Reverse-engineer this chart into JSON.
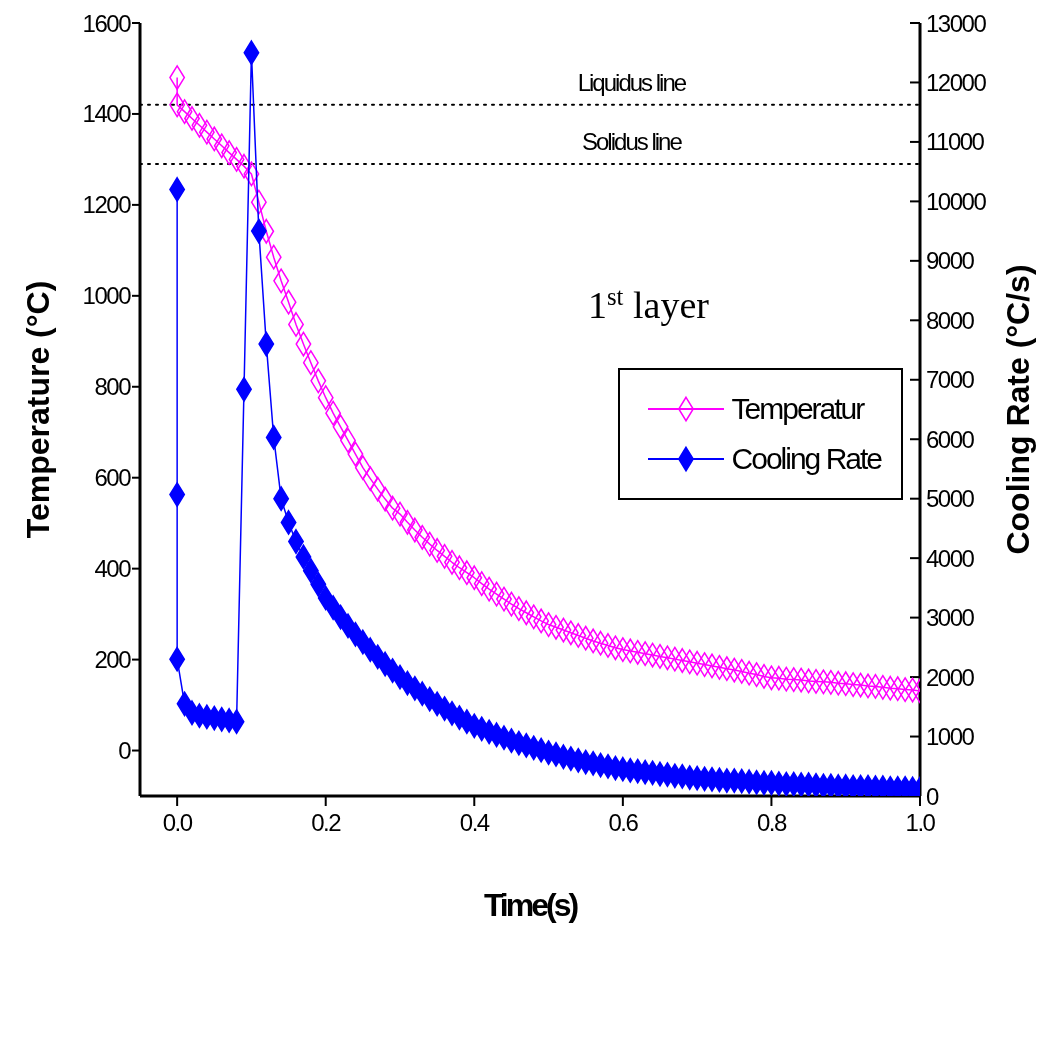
{
  "chart_data": {
    "type": "line",
    "xlabel": "Time(s)",
    "ylabel": "Temperature (°C)",
    "y2label": "Cooling Rate (°C/s)",
    "xlim": [
      -0.05,
      1.0
    ],
    "xticks": [
      {
        "value": 0,
        "label": "0.0"
      },
      0.2,
      0.4,
      0.6,
      0.8,
      {
        "value": 1,
        "label": "1.0"
      }
    ],
    "ylim": [
      -100,
      1600
    ],
    "yticks": [
      0,
      200,
      400,
      600,
      800,
      1000,
      1200,
      1400,
      1600
    ],
    "y2lim": [
      0,
      13000
    ],
    "y2ticks": [
      0,
      1000,
      2000,
      3000,
      4000,
      5000,
      6000,
      7000,
      8000,
      9000,
      10000,
      11000,
      12000,
      13000
    ],
    "marker": "diamond",
    "line_style": "solid",
    "legend": "right",
    "annotations": [
      "1$^{st}$ layer"
    ],
    "ref_lines": [
      {
        "axis": "y",
        "value": 1420,
        "label": "Liquidus line",
        "color": "#000000",
        "line_style": "dotted"
      },
      {
        "axis": "y",
        "value": 1290,
        "label": "Solidus line",
        "color": "#000000",
        "line_style": "dotted"
      }
    ],
    "series": [
      {
        "name": "Temperatur",
        "color": "#ff00ff",
        "x": [
          0,
          0,
          0.01,
          0.02,
          0.03,
          0.04,
          0.05,
          0.06,
          0.07,
          0.08,
          0.09,
          0.1,
          0.11,
          0.12,
          0.13,
          0.14,
          0.15,
          0.16,
          0.17,
          0.18,
          0.19,
          0.2,
          0.21,
          0.22,
          0.23,
          0.24,
          0.25,
          0.26,
          0.27,
          0.28,
          0.29,
          0.3,
          0.31,
          0.32,
          0.33,
          0.34,
          0.35,
          0.36,
          0.37,
          0.38,
          0.39,
          0.4,
          0.41,
          0.42,
          0.43,
          0.44,
          0.45,
          0.46,
          0.47,
          0.48,
          0.49,
          0.5,
          0.51,
          0.52,
          0.53,
          0.54,
          0.55,
          0.56,
          0.57,
          0.58,
          0.59,
          0.6,
          0.61,
          0.62,
          0.63,
          0.64,
          0.65,
          0.66,
          0.67,
          0.68,
          0.69,
          0.7,
          0.71,
          0.72,
          0.73,
          0.74,
          0.75,
          0.76,
          0.77,
          0.78,
          0.79,
          0.8,
          0.81,
          0.82,
          0.83,
          0.84,
          0.85,
          0.86,
          0.87,
          0.88,
          0.89,
          0.9,
          0.91,
          0.92,
          0.93,
          0.94,
          0.95,
          0.96,
          0.97,
          0.98,
          0.99,
          1.0
        ],
        "values": [
          1480,
          1420,
          1405,
          1390,
          1375,
          1360,
          1345,
          1330,
          1315,
          1300,
          1285,
          1268,
          1206,
          1142,
          1085,
          1033,
          986,
          937,
          894,
          853,
          813,
          776,
          742,
          712,
          682,
          652,
          622,
          598,
          575,
          553,
          533,
          520,
          502,
          485,
          469,
          454,
          440,
          427,
          414,
          402,
          391,
          380,
          367,
          355,
          344,
          333,
          322,
          312,
          303,
          294,
          285,
          277,
          271,
          265,
          259,
          253,
          247,
          241,
          236,
          231,
          226,
          222,
          219,
          216,
          213,
          210,
          207,
          204,
          201,
          198,
          195,
          192,
          189,
          186,
          183,
          180,
          177,
          174,
          170,
          167,
          163,
          160,
          159,
          157,
          156,
          155,
          153,
          152,
          151,
          150,
          148,
          147,
          145,
          144,
          142,
          141,
          139,
          137,
          136,
          134,
          133,
          131
        ]
      },
      {
        "name": "Cooling Rate",
        "color": "#0000ff",
        "axis": "y2",
        "x": [
          0,
          0,
          0,
          0.01,
          0.02,
          0.03,
          0.04,
          0.05,
          0.06,
          0.07,
          0.08,
          0.09,
          0.1,
          0.11,
          0.12,
          0.13,
          0.14,
          0.15,
          0.16,
          0.17,
          0.18,
          0.19,
          0.2,
          0.21,
          0.22,
          0.23,
          0.24,
          0.25,
          0.26,
          0.27,
          0.28,
          0.29,
          0.3,
          0.31,
          0.32,
          0.33,
          0.34,
          0.35,
          0.36,
          0.37,
          0.38,
          0.39,
          0.4,
          0.41,
          0.42,
          0.43,
          0.44,
          0.45,
          0.46,
          0.47,
          0.48,
          0.49,
          0.5,
          0.51,
          0.52,
          0.53,
          0.54,
          0.55,
          0.56,
          0.57,
          0.58,
          0.59,
          0.6,
          0.61,
          0.62,
          0.63,
          0.64,
          0.65,
          0.66,
          0.67,
          0.68,
          0.69,
          0.7,
          0.71,
          0.72,
          0.73,
          0.74,
          0.75,
          0.76,
          0.77,
          0.78,
          0.79,
          0.8,
          0.81,
          0.82,
          0.83,
          0.84,
          0.85,
          0.86,
          0.87,
          0.88,
          0.89,
          0.9,
          0.91,
          0.92,
          0.93,
          0.94,
          0.95,
          0.96,
          0.97,
          0.98,
          0.99,
          1.0
        ],
        "values": [
          10200,
          5070,
          2300,
          1550,
          1400,
          1350,
          1330,
          1310,
          1290,
          1270,
          1250,
          6840,
          12500,
          9500,
          7600,
          6030,
          5000,
          4600,
          4280,
          4020,
          3790,
          3560,
          3330,
          3170,
          3010,
          2860,
          2720,
          2590,
          2460,
          2340,
          2220,
          2110,
          2000,
          1900,
          1810,
          1720,
          1630,
          1550,
          1470,
          1390,
          1320,
          1250,
          1180,
          1130,
          1080,
          1030,
          980,
          930,
          890,
          850,
          810,
          770,
          730,
          700,
          660,
          630,
          600,
          570,
          550,
          520,
          500,
          470,
          450,
          430,
          420,
          400,
          390,
          370,
          360,
          340,
          330,
          310,
          300,
          290,
          280,
          270,
          260,
          260,
          250,
          240,
          230,
          220,
          220,
          210,
          200,
          200,
          190,
          190,
          180,
          170,
          170,
          160,
          160,
          150,
          150,
          150,
          140,
          140,
          130,
          130,
          130,
          120,
          120
        ]
      }
    ]
  }
}
